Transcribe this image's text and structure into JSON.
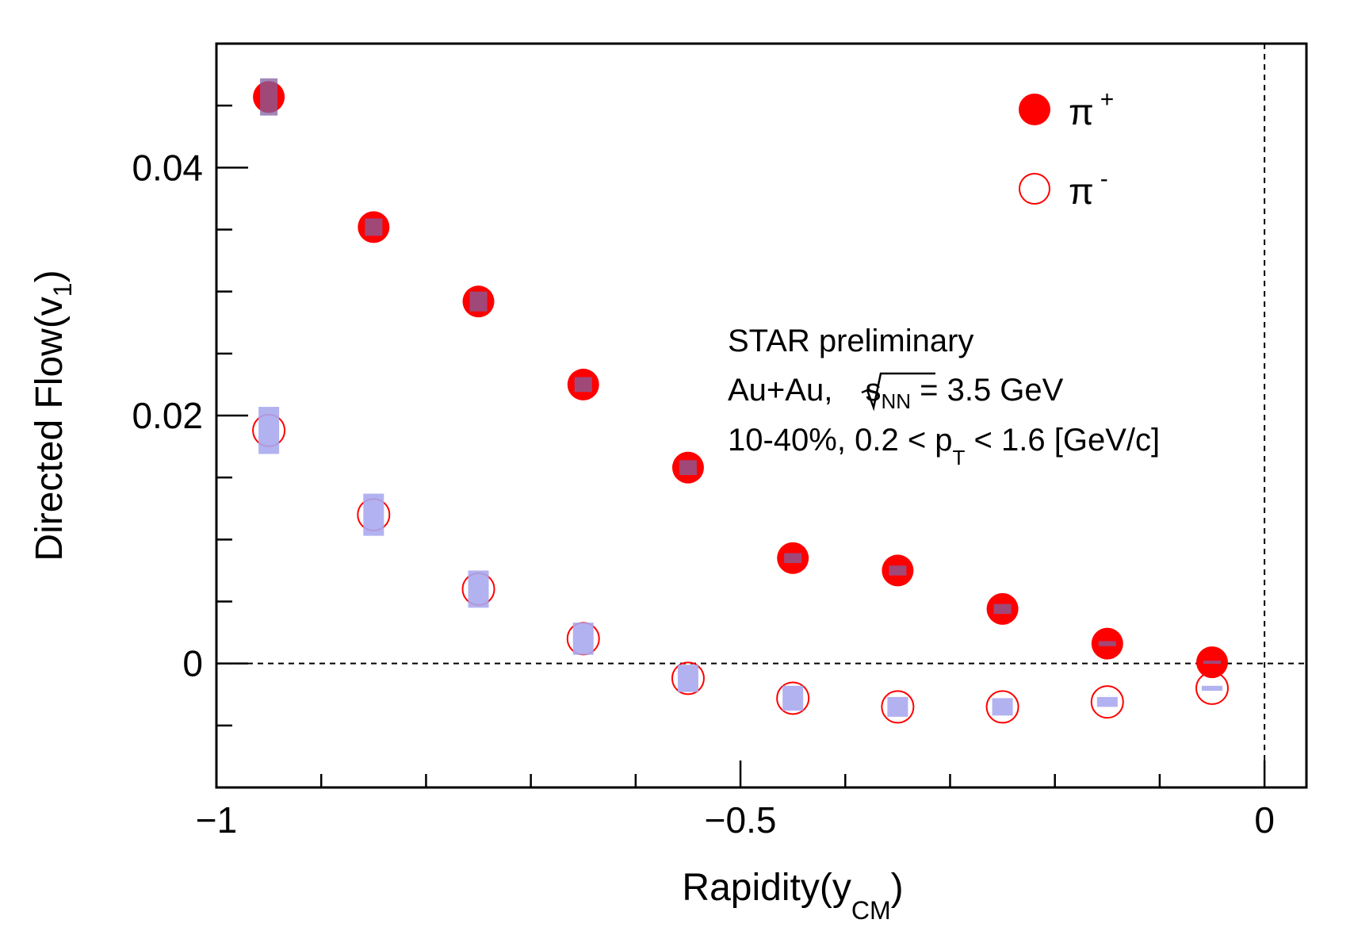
{
  "chart_data": {
    "type": "scatter",
    "title": "",
    "xlabel": {
      "main": "Rapidity(y",
      "sub": "CM",
      "close": ")"
    },
    "ylabel": {
      "main": "Directed Flow(v",
      "sub": "1",
      "close": ")"
    },
    "xlim": [
      -1.0,
      0.04
    ],
    "ylim": [
      -0.01,
      0.05
    ],
    "x_ticks": [
      {
        "value": -1.0,
        "label": "−1"
      },
      {
        "value": -0.5,
        "label": "−0.5"
      },
      {
        "value": 0.0,
        "label": "0"
      }
    ],
    "y_ticks": [
      {
        "value": 0.0,
        "label": "0"
      },
      {
        "value": 0.02,
        "label": "0.02"
      },
      {
        "value": 0.04,
        "label": "0.04"
      }
    ],
    "grid": false,
    "reference_lines": {
      "y_zero": true,
      "x_zero": true,
      "style": "dashed"
    },
    "legend_position": "top-right",
    "annotation": {
      "line1": "STAR preliminary",
      "line2_prefix": "Au+Au, ",
      "line2_s": "s",
      "line2_sub": "NN",
      "line2_suffix": " = 3.5 GeV",
      "line3_prefix": "10-40%, 0.2 < p",
      "line3_sub": "T",
      "line3_suffix": " < 1.6 [GeV/c]"
    },
    "series": [
      {
        "name": "π⁺",
        "label": "π",
        "label_sup": "+",
        "marker": "filled-circle",
        "color": "#ff0000",
        "syst_color": "#8060a0",
        "x": [
          -0.95,
          -0.85,
          -0.75,
          -0.65,
          -0.55,
          -0.45,
          -0.35,
          -0.25,
          -0.15,
          -0.05
        ],
        "y": [
          0.0457,
          0.0352,
          0.0292,
          0.0225,
          0.0158,
          0.0085,
          0.0075,
          0.0044,
          0.0016,
          0.0001
        ],
        "syst": [
          0.0015,
          0.0007,
          0.0008,
          0.0006,
          0.0006,
          0.0004,
          0.0004,
          0.0004,
          0.0002,
          0.0001
        ]
      },
      {
        "name": "π⁻",
        "label": "π",
        "label_sup": "-",
        "marker": "open-circle",
        "color": "#ff0000",
        "syst_color": "#aaaaf0",
        "x": [
          -0.95,
          -0.85,
          -0.75,
          -0.65,
          -0.55,
          -0.45,
          -0.35,
          -0.25,
          -0.15,
          -0.05
        ],
        "y": [
          0.0188,
          0.012,
          0.006,
          0.002,
          -0.0012,
          -0.0028,
          -0.0035,
          -0.0035,
          -0.0031,
          -0.002
        ],
        "syst": [
          0.0019,
          0.0017,
          0.0015,
          0.0013,
          0.0011,
          0.001,
          0.0008,
          0.0007,
          0.0004,
          0.0002
        ]
      }
    ]
  }
}
